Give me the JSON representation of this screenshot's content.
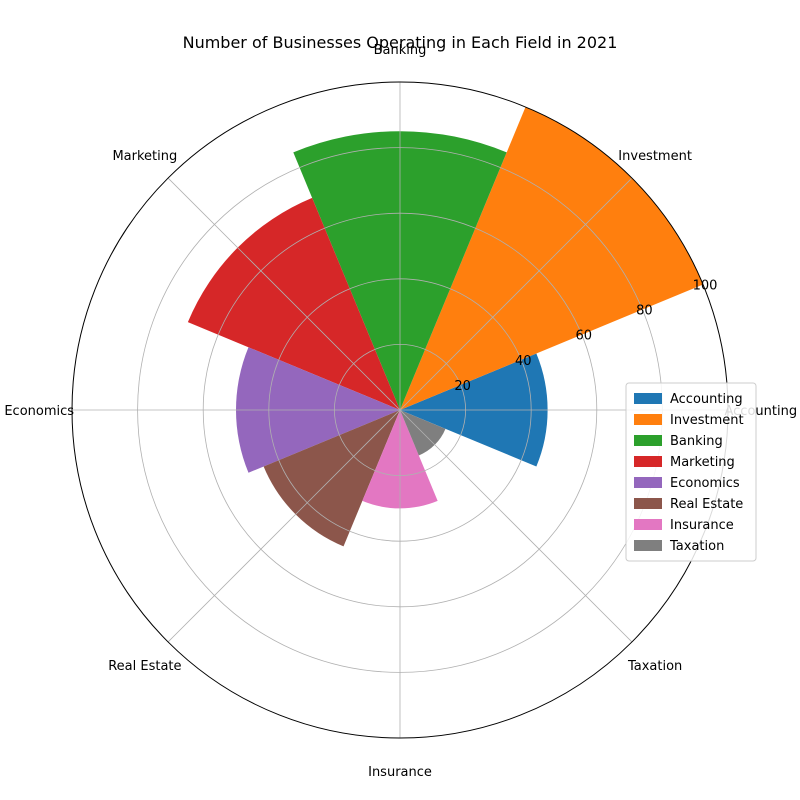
{
  "chart_data": {
    "type": "bar",
    "subtype": "polar",
    "title": "Number of Businesses Operating in Each Field in 2021",
    "categories": [
      "Accounting",
      "Investment",
      "Banking",
      "Marketing",
      "Economics",
      "Real Estate",
      "Insurance",
      "Taxation"
    ],
    "values": [
      45,
      100,
      85,
      70,
      50,
      45,
      30,
      15
    ],
    "colors": [
      "#1f77b4",
      "#ff7f0e",
      "#2ca02c",
      "#d62728",
      "#9467bd",
      "#8c564b",
      "#e377c2",
      "#7f7f7f"
    ],
    "r_ticks": [
      20,
      40,
      60,
      80,
      100
    ],
    "r_tick_labels": [
      "20",
      "40",
      "60",
      "80",
      "100"
    ],
    "rlim": [
      0,
      100
    ],
    "grid": true,
    "legend": {
      "position": "right",
      "entries": [
        "Accounting",
        "Investment",
        "Banking",
        "Marketing",
        "Economics",
        "Real Estate",
        "Insurance",
        "Taxation"
      ]
    }
  }
}
